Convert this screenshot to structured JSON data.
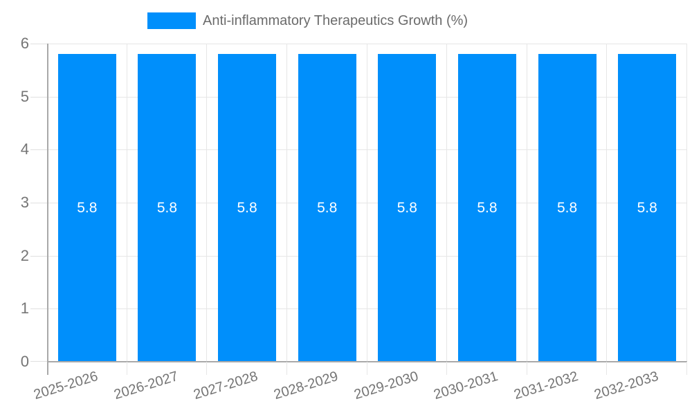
{
  "legend": {
    "label": "Anti-inflammatory Therapeutics Growth (%)"
  },
  "chart_data": {
    "type": "bar",
    "title": "Anti-inflammatory Therapeutics Growth (%)",
    "categories": [
      "2025-2026",
      "2026-2027",
      "2027-2028",
      "2028-2029",
      "2029-2030",
      "2030-2031",
      "2031-2032",
      "2032-2033"
    ],
    "series": [
      {
        "name": "Anti-inflammatory Therapeutics Growth (%)",
        "values": [
          5.8,
          5.8,
          5.8,
          5.8,
          5.8,
          5.8,
          5.8,
          5.8
        ]
      }
    ],
    "bar_labels": [
      "5.8",
      "5.8",
      "5.8",
      "5.8",
      "5.8",
      "5.8",
      "5.8",
      "5.8"
    ],
    "yticks": [
      "6",
      "5",
      "4",
      "3",
      "2",
      "1",
      "0"
    ],
    "xlabel": "",
    "ylabel": "",
    "ylim": [
      0,
      6
    ],
    "grid": true,
    "legend_position": "top",
    "x_label_rotation_deg": -17,
    "colors": {
      "bar": "#008FFB",
      "bar_value_text": "#ffffff",
      "gridline": "#e6e6e6",
      "axis_line": "#a9a9a9",
      "tick_text": "#757575",
      "legend_text": "#6b6b6b",
      "background": "#ffffff"
    }
  }
}
